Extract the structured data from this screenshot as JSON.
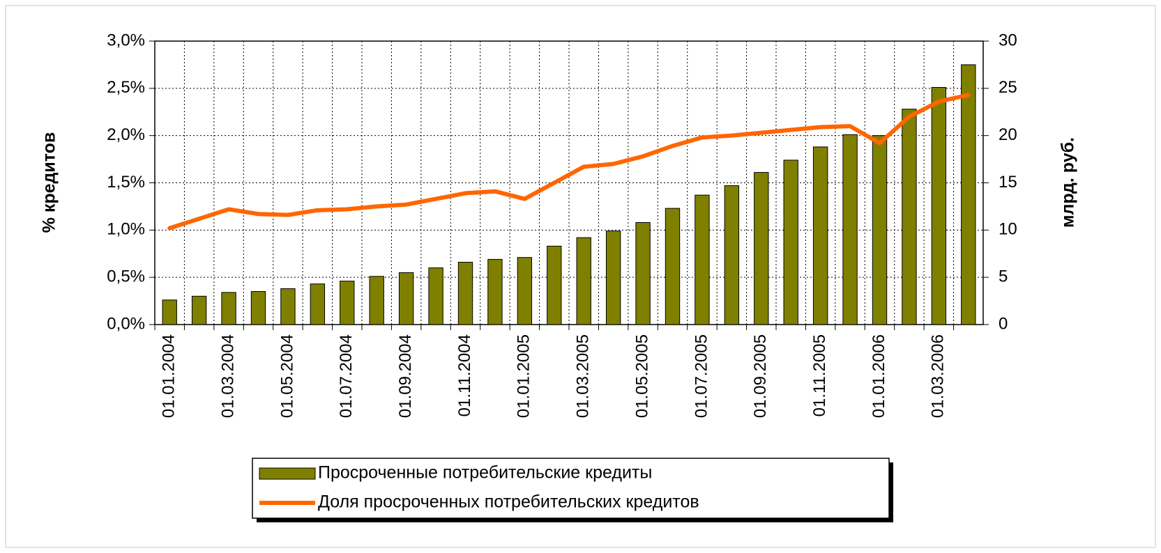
{
  "chart_data": {
    "type": "bar_line",
    "ylabel": "% кредитов",
    "y2label": "млрд. руб.",
    "categories": [
      "01.01.2004",
      null,
      "01.03.2004",
      null,
      "01.05.2004",
      null,
      "01.07.2004",
      null,
      "01.09.2004",
      null,
      "01.11.2004",
      null,
      "01.01.2005",
      null,
      "01.03.2005",
      null,
      "01.05.2005",
      null,
      "01.07.2005",
      null,
      "01.09.2005",
      null,
      "01.11.2005",
      null,
      "01.01.2006",
      null,
      "01.03.2006",
      null
    ],
    "series": [
      {
        "name": "Просроченные потребительские кредиты",
        "type": "bar",
        "axis": "y2",
        "color": "#808000",
        "values": [
          2.6,
          3.0,
          3.4,
          3.5,
          3.8,
          4.3,
          4.6,
          5.1,
          5.5,
          6.0,
          6.6,
          6.9,
          7.1,
          8.3,
          9.2,
          9.9,
          10.8,
          12.3,
          13.7,
          14.7,
          16.1,
          17.4,
          18.8,
          20.1,
          20.0,
          22.8,
          25.1,
          27.5
        ]
      },
      {
        "name": "Доля просроченных потребительских кредитов",
        "type": "line",
        "axis": "y",
        "color": "#ff6600",
        "values": [
          1.02,
          1.12,
          1.22,
          1.17,
          1.16,
          1.21,
          1.22,
          1.25,
          1.27,
          1.33,
          1.39,
          1.41,
          1.33,
          1.5,
          1.67,
          1.7,
          1.78,
          1.89,
          1.98,
          2.0,
          2.03,
          2.06,
          2.09,
          2.1,
          1.92,
          2.2,
          2.36,
          2.43
        ]
      }
    ],
    "ylim": [
      0,
      3
    ],
    "yticks": [
      {
        "value": 0,
        "label": "0,0%"
      },
      {
        "value": 0.5,
        "label": "0,5%"
      },
      {
        "value": 1,
        "label": "1,0%"
      },
      {
        "value": 1.5,
        "label": "1,5%"
      },
      {
        "value": 2,
        "label": "2,0%"
      },
      {
        "value": 2.5,
        "label": "2,5%"
      },
      {
        "value": 3,
        "label": "3,0%"
      }
    ],
    "y2lim": [
      0,
      30
    ],
    "y2ticks": [
      0,
      5,
      10,
      15,
      20,
      25,
      30
    ],
    "grid": true,
    "legend": "bottom"
  }
}
